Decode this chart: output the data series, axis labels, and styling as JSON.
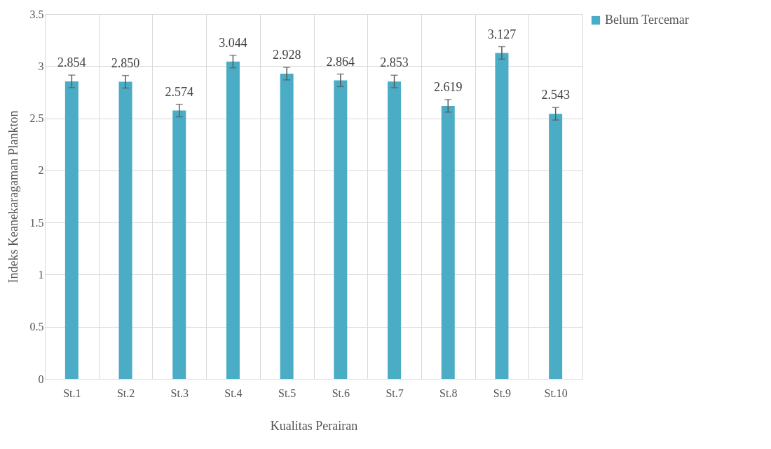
{
  "chart_data": {
    "type": "bar",
    "xlabel": "Kualitas Perairan",
    "ylabel": "Indeks Keanekaragaman Plankton",
    "categories": [
      "St.1",
      "St.2",
      "St.3",
      "St.4",
      "St.5",
      "St.6",
      "St.7",
      "St.8",
      "St.9",
      "St.10"
    ],
    "series": [
      {
        "name": "Belum Tercemar",
        "color": "#4bacc6",
        "values": [
          2.854,
          2.85,
          2.574,
          3.044,
          2.928,
          2.864,
          2.853,
          2.619,
          3.127,
          2.543
        ],
        "errors": [
          0.06,
          0.06,
          0.06,
          0.06,
          0.06,
          0.06,
          0.06,
          0.06,
          0.06,
          0.06
        ],
        "value_labels": [
          "2.854",
          "2.850",
          "2.574",
          "3.044",
          "2.928",
          "2.864",
          "2.853",
          "2.619",
          "3.127",
          "2.543"
        ]
      }
    ],
    "ylim": [
      0,
      3.5
    ],
    "yticks": [
      0,
      0.5,
      1,
      1.5,
      2,
      2.5,
      3,
      3.5
    ],
    "grid": true,
    "legend": "right"
  }
}
